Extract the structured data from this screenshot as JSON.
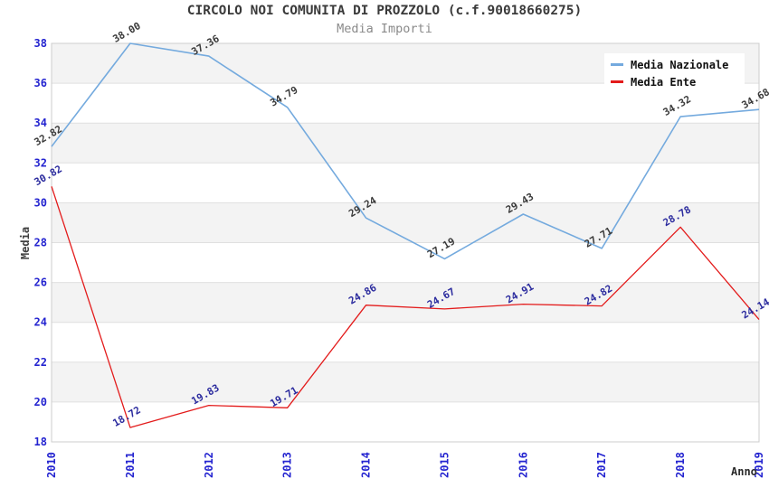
{
  "chart_data": {
    "type": "line",
    "title": "CIRCOLO NOI COMUNITA DI PROZZOLO (c.f.90018660275)",
    "subtitle": "Media Importi",
    "xlabel": "Anno",
    "ylabel": "Media",
    "categories": [
      "2010",
      "2011",
      "2012",
      "2013",
      "2014",
      "2015",
      "2016",
      "2017",
      "2018",
      "2019"
    ],
    "series": [
      {
        "name": "Media Nazionale",
        "color": "#74aade",
        "label_color": "#3a3a3a",
        "values": [
          32.82,
          38.0,
          37.36,
          34.79,
          29.24,
          27.19,
          29.43,
          27.71,
          34.32,
          34.68
        ]
      },
      {
        "name": "Media Ente",
        "color": "#e31b1b",
        "label_color": "#2b2b9e",
        "values": [
          30.82,
          18.72,
          19.83,
          19.71,
          24.86,
          24.67,
          24.91,
          24.82,
          28.78,
          24.14
        ]
      }
    ],
    "ylim": [
      18,
      38
    ],
    "ytick_step": 2,
    "grid": true,
    "legend_position": "top-right",
    "colors": {
      "tick_label": "#2424d0",
      "band": "#f3f3f3",
      "grid": "#e0e0e0",
      "plot_border": "#cccccc"
    }
  }
}
